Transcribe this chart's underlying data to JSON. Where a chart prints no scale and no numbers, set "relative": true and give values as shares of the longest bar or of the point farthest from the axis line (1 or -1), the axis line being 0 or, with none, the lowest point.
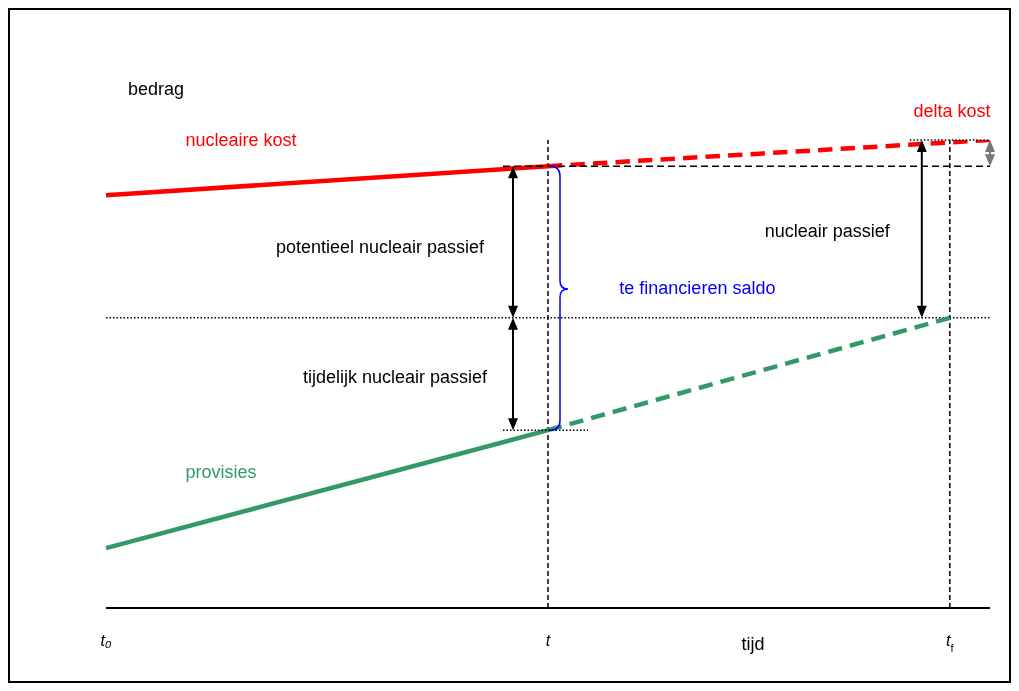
{
  "chart_data": {
    "type": "line",
    "relative": true,
    "xlabel": "tijd",
    "ylabel": "bedrag",
    "categories": [
      "t₀",
      null,
      null,
      null,
      null,
      null,
      null,
      null,
      null,
      null,
      null,
      "t",
      null,
      null,
      null,
      null,
      null,
      null,
      null,
      null,
      null,
      "t$_{f}$",
      null
    ],
    "series": [
      {
        "name": "nucleaire kost",
        "color": "#ff0000",
        "line_style": "solid",
        "values": [
          0.882,
          null,
          null,
          null,
          null,
          null,
          null,
          null,
          null,
          null,
          null,
          0.944,
          null,
          null,
          null,
          null,
          null,
          null,
          null,
          null,
          null,
          null,
          null
        ]
      },
      {
        "color": "#ff0000",
        "line_style": "dashed",
        "values": [
          null,
          null,
          null,
          null,
          null,
          null,
          null,
          null,
          null,
          null,
          null,
          0.944,
          null,
          null,
          null,
          null,
          null,
          null,
          null,
          null,
          null,
          null,
          1.0
        ]
      },
      {
        "name": "provisies",
        "color": "#339966",
        "line_style": "solid",
        "values": [
          0.128,
          null,
          null,
          null,
          null,
          null,
          null,
          null,
          null,
          null,
          null,
          0.38,
          null,
          null,
          null,
          null,
          null,
          null,
          null,
          null,
          null,
          null,
          null
        ]
      },
      {
        "color": "#339966",
        "line_style": "dashed",
        "values": [
          null,
          null,
          null,
          null,
          null,
          null,
          null,
          null,
          null,
          null,
          null,
          0.38,
          null,
          null,
          null,
          null,
          null,
          null,
          null,
          null,
          null,
          0.62,
          null
        ]
      }
    ],
    "ref_lines": [
      {
        "axis": "x",
        "value": "t",
        "color": "#000000",
        "line_style": "dashed"
      },
      {
        "axis": "x",
        "value": "t$_{f}$",
        "color": "#000000",
        "line_style": "dashed"
      },
      {
        "axis": "y",
        "value": 0.62,
        "color": "#000000",
        "line_style": "dotted"
      }
    ],
    "annotations": [
      "potentieel nucleair passief",
      "tijdelijk nucleair passief",
      "te financieren saldo",
      "nucleair passief",
      "delta kost"
    ]
  }
}
